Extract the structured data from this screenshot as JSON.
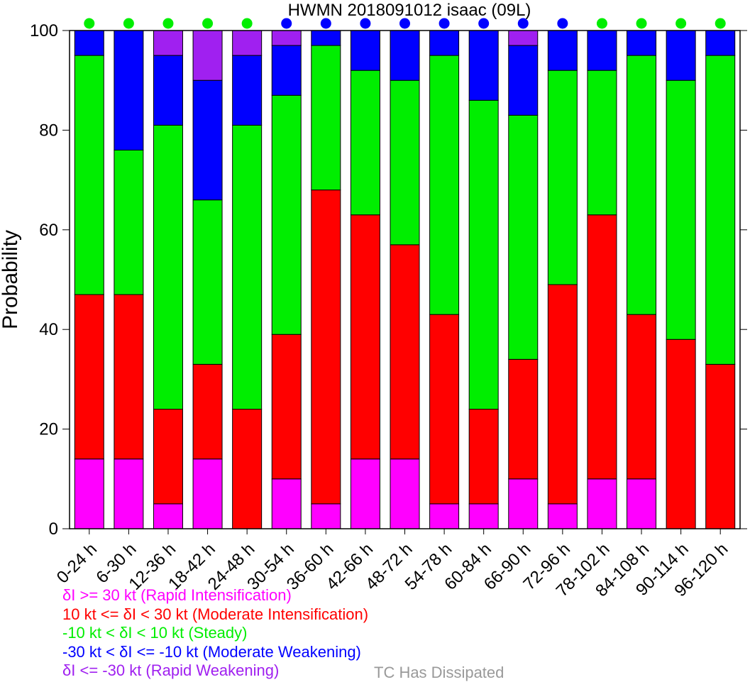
{
  "chart_data": {
    "type": "bar",
    "stacked": true,
    "title": "HWMN 2018091012 isaac (09L)",
    "xlabel": "",
    "ylabel": "Probability",
    "ylim": [
      0,
      100
    ],
    "yticks": [
      "0",
      "20",
      "40",
      "60",
      "80",
      "100"
    ],
    "categories": [
      "0-24 h",
      "6-30 h",
      "12-36 h",
      "18-42 h",
      "24-48 h",
      "30-54 h",
      "36-60 h",
      "42-66 h",
      "48-72 h",
      "54-78 h",
      "60-84 h",
      "66-90 h",
      "72-96 h",
      "78-102 h",
      "84-108 h",
      "90-114 h",
      "96-120 h"
    ],
    "series": [
      {
        "name": "δI >= 30 kt (Rapid Intensification)",
        "color": "#ff00ff",
        "values": [
          14,
          14,
          5,
          14,
          0,
          10,
          5,
          14,
          14,
          5,
          5,
          10,
          5,
          10,
          10,
          0,
          0
        ]
      },
      {
        "name": "10 kt <= δI < 30 kt (Moderate Intensification)",
        "color": "#ff0000",
        "values": [
          33,
          33,
          19,
          19,
          24,
          29,
          63,
          49,
          43,
          38,
          19,
          24,
          44,
          53,
          33,
          38,
          33
        ]
      },
      {
        "name": "-10 kt < δI < 10 kt (Steady)",
        "color": "#00ee00",
        "values": [
          48,
          29,
          57,
          33,
          57,
          48,
          29,
          29,
          33,
          52,
          62,
          49,
          43,
          29,
          52,
          52,
          62
        ]
      },
      {
        "name": "-30 kt < δI <= -10 kt (Moderate Weakening)",
        "color": "#0000ff",
        "values": [
          5,
          24,
          14,
          24,
          14,
          10,
          3,
          8,
          10,
          5,
          14,
          14,
          8,
          8,
          5,
          10,
          5
        ]
      },
      {
        "name": "δI <= -30 kt (Rapid Weakening)",
        "color": "#a020f0",
        "values": [
          0,
          0,
          5,
          10,
          5,
          3,
          0,
          0,
          0,
          0,
          0,
          3,
          0,
          0,
          0,
          0,
          0
        ]
      }
    ],
    "markers": {
      "description": "dot above each bar colored by most likely category",
      "values": [
        "steady",
        "steady",
        "steady",
        "steady",
        "steady",
        "weakening",
        "weakening",
        "weakening",
        "weakening",
        "weakening",
        "weakening",
        "weakening",
        "weakening",
        "steady",
        "steady",
        "steady",
        "steady"
      ],
      "colors": {
        "steady": "#00ee00",
        "weakening": "#0000ff"
      }
    },
    "legend_placement": "below",
    "grid": false
  },
  "legend": [
    {
      "text": "δI >= 30 kt (Rapid Intensification)",
      "color": "#ff00ff"
    },
    {
      "text": "10 kt <= δI < 30 kt (Moderate Intensification)",
      "color": "#ff0000"
    },
    {
      "text": "-10 kt < δI < 10 kt (Steady)",
      "color": "#00ee00"
    },
    {
      "text": "-30 kt < δI <= -10 kt (Moderate Weakening)",
      "color": "#0000ff"
    },
    {
      "text": "δI <= -30 kt (Rapid Weakening)",
      "color": "#a020f0"
    }
  ],
  "dissipated": {
    "text": "TC Has Dissipated",
    "color": "#999999"
  }
}
